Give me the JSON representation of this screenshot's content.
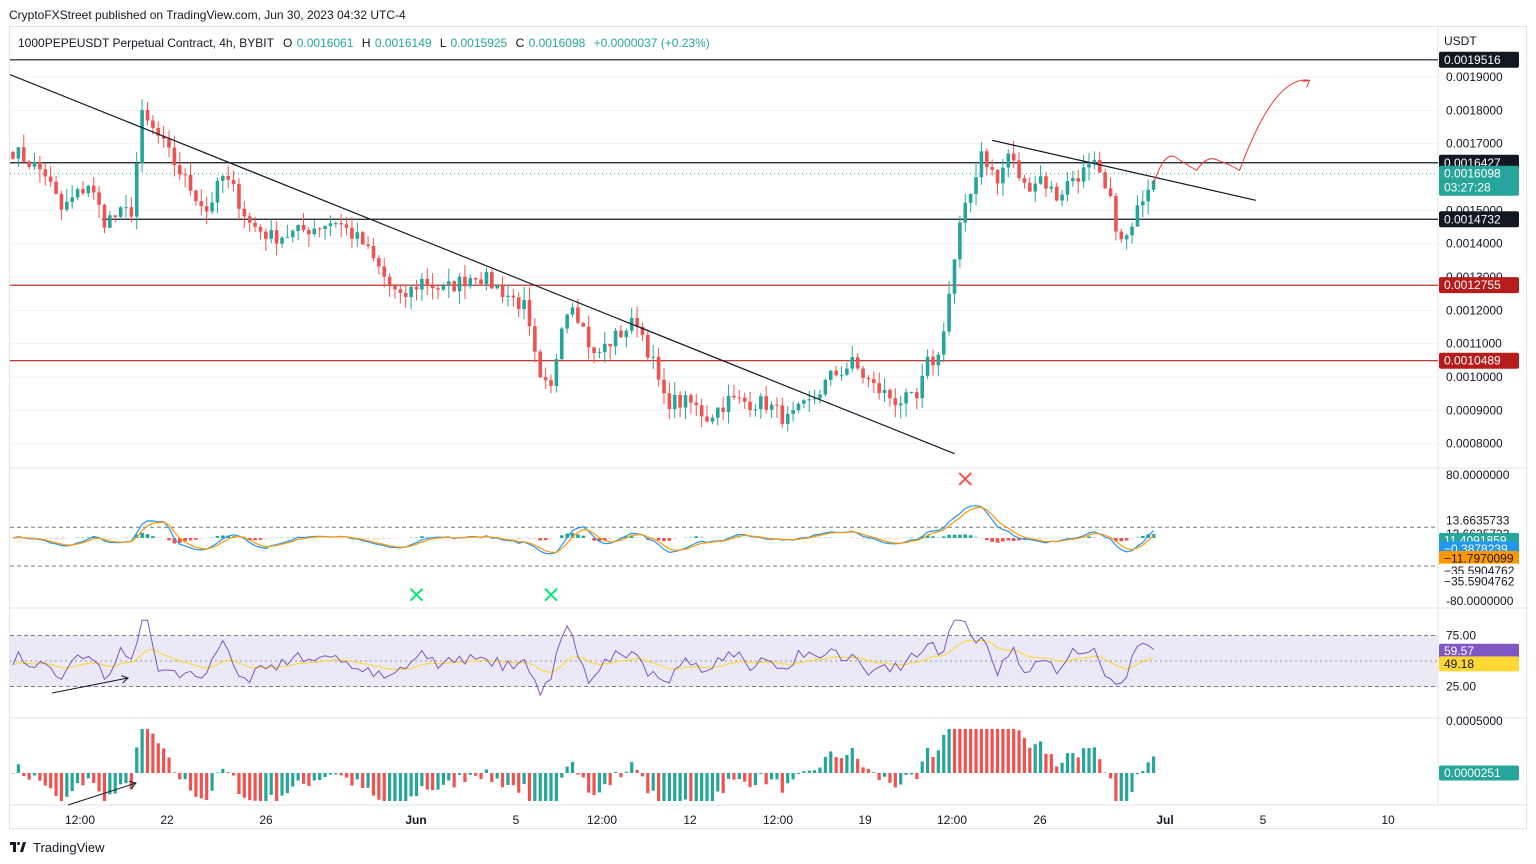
{
  "header": {
    "published": "CryptoFXStreet published on TradingView.com, Jun 30, 2023 04:32 UTC-4"
  },
  "footer": {
    "brand": "TradingView"
  },
  "legend": {
    "symbol": "1000PEPEUSDT Perpetual Contract, 4h, BYBIT",
    "o_label": "O",
    "o_value": "0.0016061",
    "h_label": "H",
    "h_value": "0.0016149",
    "l_label": "L",
    "l_value": "0.0015925",
    "c_label": "C",
    "c_value": "0.0016098",
    "change": "+0.0000037 (+0.23%)"
  },
  "currency": "USDT",
  "colors": {
    "up": "#26a69a",
    "down": "#ef5350",
    "support": "#b71c1c",
    "macd_fast": "#2196f3",
    "macd_slow": "#ff9800",
    "rsi": "#7e57c2",
    "rsi_ma": "#fdd835",
    "rsi_band": "#ece9f7"
  },
  "chart_data": [
    {
      "type": "candlestick",
      "name": "price",
      "x_ticks": [
        "12:00",
        "22",
        "26",
        "Jun",
        "5",
        "12:00",
        "12",
        "12:00",
        "19",
        "12:00",
        "26",
        "Jul",
        "5",
        "10"
      ],
      "y_ticks": [
        "0.0019000",
        "0.0018000",
        "0.0017000",
        "0.0015000",
        "0.0014000",
        "0.0013000",
        "0.0012000",
        "0.0011000",
        "0.0010000",
        "0.0009000",
        "0.0008000"
      ],
      "ylim": [
        0.00073,
        0.00196
      ],
      "levels": [
        {
          "label": "0.0019516",
          "value": 0.0019516,
          "style": "black"
        },
        {
          "label": "0.0016427",
          "value": 0.0016427,
          "style": "black"
        },
        {
          "label": "0.0014732",
          "value": 0.0014732,
          "style": "black"
        },
        {
          "label": "0.0012755",
          "value": 0.0012755,
          "style": "red"
        },
        {
          "label": "0.0010489",
          "value": 0.0010489,
          "style": "red"
        }
      ],
      "last_price": {
        "label": "0.0016098",
        "value": 0.0016098,
        "countdown": "03:27:28"
      },
      "anchors": [
        [
          0,
          0.00168
        ],
        [
          6,
          0.00161
        ],
        [
          9,
          0.0015
        ],
        [
          14,
          0.00158
        ],
        [
          17,
          0.00147
        ],
        [
          22,
          0.0015
        ],
        [
          24,
          0.00178
        ],
        [
          27,
          0.00172
        ],
        [
          32,
          0.00159
        ],
        [
          36,
          0.0015
        ],
        [
          39,
          0.0016
        ],
        [
          41,
          0.00156
        ],
        [
          44,
          0.00146
        ],
        [
          48,
          0.00142
        ],
        [
          52,
          0.00143
        ],
        [
          56,
          0.00145
        ],
        [
          60,
          0.00147
        ],
        [
          65,
          0.0014
        ],
        [
          69,
          0.0013
        ],
        [
          72,
          0.00123
        ],
        [
          76,
          0.00129
        ],
        [
          80,
          0.00126
        ],
        [
          86,
          0.00131
        ],
        [
          90,
          0.00127
        ],
        [
          95,
          0.00121
        ],
        [
          98,
          0.00098
        ],
        [
          100,
          0.00096
        ],
        [
          102,
          0.00117
        ],
        [
          104,
          0.00123
        ],
        [
          108,
          0.00106
        ],
        [
          112,
          0.00112
        ],
        [
          116,
          0.00117
        ],
        [
          119,
          0.00104
        ],
        [
          121,
          0.00093
        ],
        [
          126,
          0.00092
        ],
        [
          129,
          0.00088
        ],
        [
          133,
          0.00093
        ],
        [
          140,
          0.00092
        ],
        [
          144,
          0.00087
        ],
        [
          148,
          0.00092
        ],
        [
          152,
          0.001
        ],
        [
          156,
          0.00104
        ],
        [
          160,
          0.00097
        ],
        [
          164,
          0.00093
        ],
        [
          168,
          0.00093
        ],
        [
          170,
          0.00104
        ],
        [
          172,
          0.00106
        ],
        [
          174,
          0.00125
        ],
        [
          176,
          0.00145
        ],
        [
          178,
          0.00155
        ],
        [
          180,
          0.00168
        ],
        [
          183,
          0.00158
        ],
        [
          185,
          0.00167
        ],
        [
          188,
          0.00157
        ],
        [
          191,
          0.0016
        ],
        [
          194,
          0.00154
        ],
        [
          197,
          0.0016
        ],
        [
          201,
          0.00163
        ],
        [
          204,
          0.00152
        ],
        [
          206,
          0.0014
        ],
        [
          208,
          0.00144
        ],
        [
          210,
          0.00155
        ],
        [
          212,
          0.00161
        ]
      ],
      "projection": [
        0.00158,
        0.00166,
        0.00162,
        0.00165,
        0.00162,
        0.00189
      ],
      "trendlines": [
        {
          "from": [
            -1,
            0.00191
          ],
          "to": [
            175,
            0.00077
          ]
        },
        {
          "from": [
            182,
            0.00171
          ],
          "to": [
            231,
            0.00153
          ]
        }
      ]
    },
    {
      "type": "line",
      "name": "stoch-rsi",
      "y_ticks": [
        "80.0000000",
        "13.6635733",
        "13.6635733",
        "-80.0000000"
      ],
      "value_labels": [
        "11.4091859",
        "−0.3878239",
        "−11.7970099",
        "−35.5904762",
        "−35.5904762"
      ]
    },
    {
      "type": "line",
      "name": "rsi",
      "y_ticks": [
        "75.00",
        "25.00"
      ],
      "value_labels": [
        "59.57",
        "49.18"
      ]
    },
    {
      "type": "bar",
      "name": "momentum",
      "y_ticks": [
        "0.0005000"
      ],
      "value_labels": [
        "0.0000251"
      ]
    }
  ]
}
